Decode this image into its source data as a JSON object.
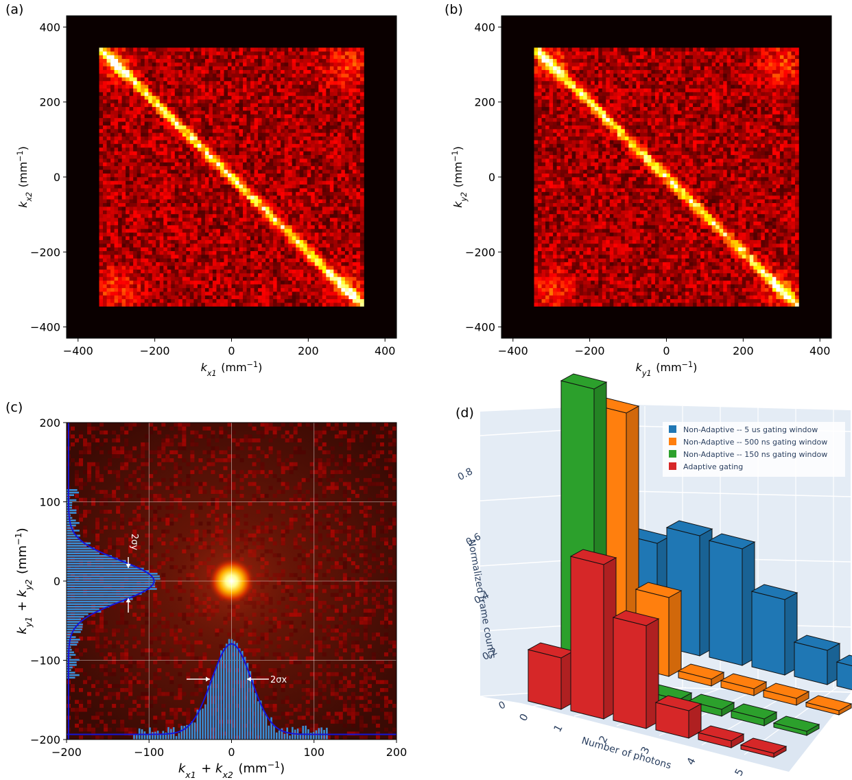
{
  "chart_data": [
    {
      "panel_label": "(a)",
      "type": "heatmap",
      "description": "2D histogram of correlated momenta; anti-diagonal band from (-340,340) to (340,-340)",
      "xlabel": "k_x1 (mm^-1)",
      "ylabel": "k_x2 (mm^-1)",
      "xlim": [
        -430,
        430
      ],
      "ylim": [
        -430,
        430
      ],
      "xticks": [
        "−400",
        "−200",
        "0",
        "200",
        "400"
      ],
      "xtick_values": [
        -400,
        -200,
        0,
        200,
        400
      ],
      "yticks": [
        "400",
        "200",
        "0",
        "−200",
        "−400"
      ],
      "ytick_values": [
        400,
        200,
        0,
        -200,
        -400
      ],
      "colormap": "hot",
      "grid": false
    },
    {
      "panel_label": "(b)",
      "type": "heatmap",
      "description": "2D histogram of correlated momenta along y; anti-diagonal band",
      "xlabel": "k_y1 (mm^-1)",
      "ylabel": "k_y2 (mm^-1)",
      "xlim": [
        -430,
        430
      ],
      "ylim": [
        -430,
        430
      ],
      "xticks": [
        "−400",
        "−200",
        "0",
        "200",
        "400"
      ],
      "xtick_values": [
        -400,
        -200,
        0,
        200,
        400
      ],
      "yticks": [
        "400",
        "200",
        "0",
        "−200",
        "−400"
      ],
      "ytick_values": [
        400,
        200,
        0,
        -200,
        -400
      ],
      "colormap": "hot",
      "grid": false
    },
    {
      "panel_label": "(c)",
      "type": "heatmap",
      "description": "Sum-coordinate histogram peaked at origin with marginal histograms and Gaussian fits",
      "xlabel": "k_x1 + k_x2 (mm^-1)",
      "ylabel": "k_y1 + k_y2 (mm^-1)",
      "xlim": [
        -200,
        200
      ],
      "ylim": [
        -200,
        200
      ],
      "xticks": [
        "−200",
        "−100",
        "0",
        "100",
        "200"
      ],
      "xtick_values": [
        -200,
        -100,
        0,
        100,
        200
      ],
      "yticks": [
        "200",
        "100",
        "0",
        "−100",
        "−200"
      ],
      "ytick_values": [
        200,
        100,
        0,
        -100,
        -200
      ],
      "grid": true,
      "peak": {
        "x": 0,
        "y": 0
      },
      "annotations": [
        "2σx",
        "2σy"
      ],
      "colormap": "hot"
    },
    {
      "panel_label": "(d)",
      "type": "bar",
      "description": "3D bar chart of normalized frame counts vs number of photons",
      "xlabel": "Number of photons",
      "zlabel": "Normalized frame counts",
      "categories": [
        "0",
        "1",
        "2",
        "3",
        "4",
        "5"
      ],
      "zticks": [
        "0",
        "0.2",
        "0.4",
        "0.6",
        "0.8"
      ],
      "legend_position": "top-right",
      "series": [
        {
          "name": "Non-Adaptive -- 5 us gating window",
          "color": "#1f77b4",
          "values": [
            0.3,
            0.35,
            0.34,
            0.22,
            0.1,
            0.07
          ]
        },
        {
          "name": "Non-Adaptive -- 500 ns gating window",
          "color": "#ff7f0e",
          "values": [
            0.74,
            0.23,
            0.02,
            0.02,
            0.02,
            0.01
          ]
        },
        {
          "name": "Non-Adaptive -- 150 ns gating window",
          "color": "#2ca02c",
          "values": [
            0.87,
            0.07,
            0.02,
            0.02,
            0.02,
            0.01
          ]
        },
        {
          "name": "Adaptive gating",
          "color": "#d62728",
          "values": [
            0.15,
            0.45,
            0.3,
            0.08,
            0.02,
            0.01
          ]
        }
      ]
    }
  ]
}
